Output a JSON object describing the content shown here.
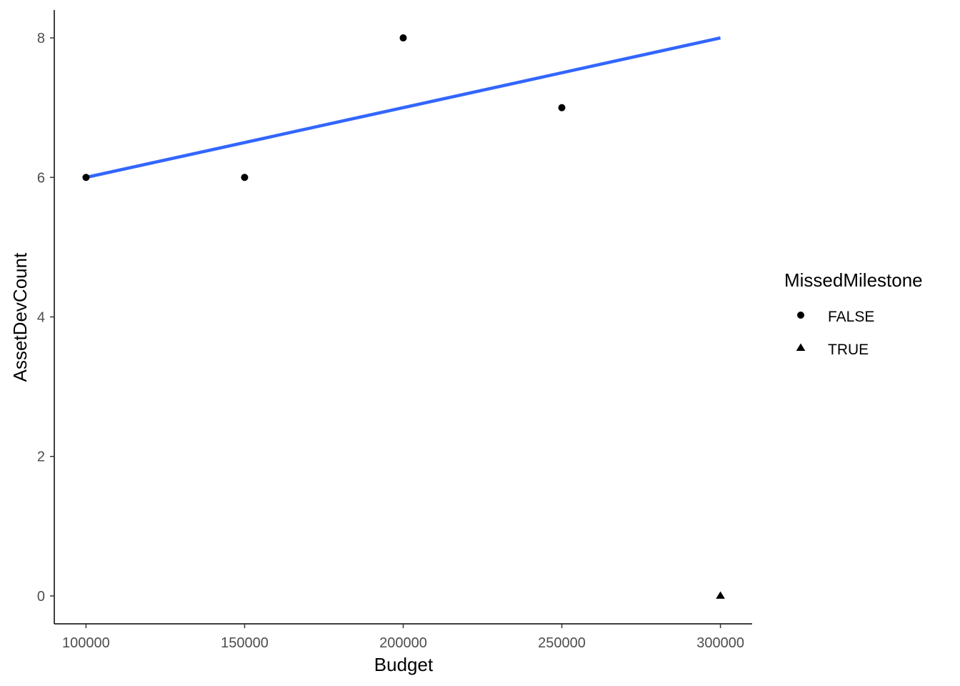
{
  "chart_data": {
    "type": "scatter",
    "title": "",
    "xlabel": "Budget",
    "ylabel": "AssetDevCount",
    "xlim": [
      90000,
      310000
    ],
    "ylim": [
      -0.4,
      8.4
    ],
    "x_ticks": [
      100000,
      150000,
      200000,
      250000,
      300000
    ],
    "x_tick_labels": [
      "100000",
      "150000",
      "200000",
      "250000",
      "300000"
    ],
    "y_ticks": [
      0,
      2,
      4,
      6,
      8
    ],
    "y_tick_labels": [
      "0",
      "2",
      "4",
      "6",
      "8"
    ],
    "grid": false,
    "legend": {
      "title": "MissedMilestone",
      "placement": "right",
      "entries": [
        {
          "label": "FALSE",
          "shape": "circle"
        },
        {
          "label": "TRUE",
          "shape": "triangle"
        }
      ]
    },
    "points": [
      {
        "x": 100000,
        "y": 6,
        "group": "FALSE"
      },
      {
        "x": 150000,
        "y": 6,
        "group": "FALSE"
      },
      {
        "x": 200000,
        "y": 8,
        "group": "FALSE"
      },
      {
        "x": 250000,
        "y": 7,
        "group": "FALSE"
      },
      {
        "x": 300000,
        "y": 0,
        "group": "TRUE"
      }
    ],
    "fit_line": {
      "x": [
        100000,
        300000
      ],
      "y": [
        6,
        8
      ],
      "color": "#3366ff"
    },
    "point_color": "#000000"
  }
}
